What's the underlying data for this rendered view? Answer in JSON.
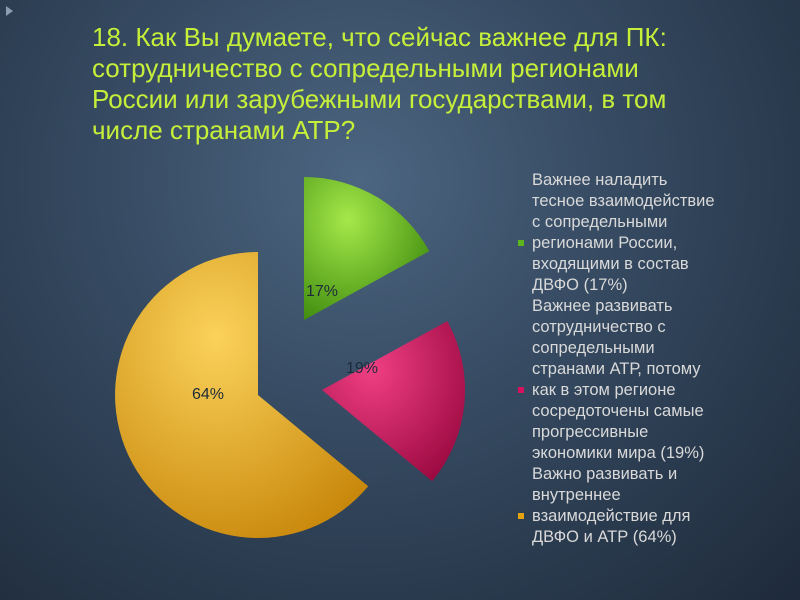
{
  "slide": {
    "title_lines": [
      "18. Как Вы думаете, что сейчас важнее для ПК:",
      "сотрудничество с сопредельными регионами",
      "России или зарубежными государствами, в том",
      "числе странами АТР?"
    ]
  },
  "chart_data": {
    "type": "pie",
    "exploded": true,
    "slices": [
      {
        "value": 17,
        "data_label": "17%",
        "color": "#5cb51d",
        "legend_lines": [
          "Важнее наладить",
          "тесное взаимодействие",
          "с сопредельными",
          "регионами России,",
          "входящими в состав",
          "ДВФО (17%)"
        ]
      },
      {
        "value": 19,
        "data_label": "19%",
        "color": "#d6125e",
        "legend_lines": [
          "Важнее развивать",
          "сотрудничество с",
          "сопредельными",
          "странами АТР, потому",
          "как в этом регионе",
          "сосредоточены самые",
          "прогрессивные",
          "экономики мира (19%)"
        ]
      },
      {
        "value": 64,
        "data_label": "64%",
        "color": "#e6a310",
        "legend_lines": [
          "Важно развивать и",
          "внутреннее",
          "взаимодействие для",
          "ДВФО и АТР (64%)"
        ]
      }
    ],
    "legend_placement": "right"
  },
  "colors": {
    "title": "#c6ef3a",
    "legend_text": "#d9d9d9"
  }
}
